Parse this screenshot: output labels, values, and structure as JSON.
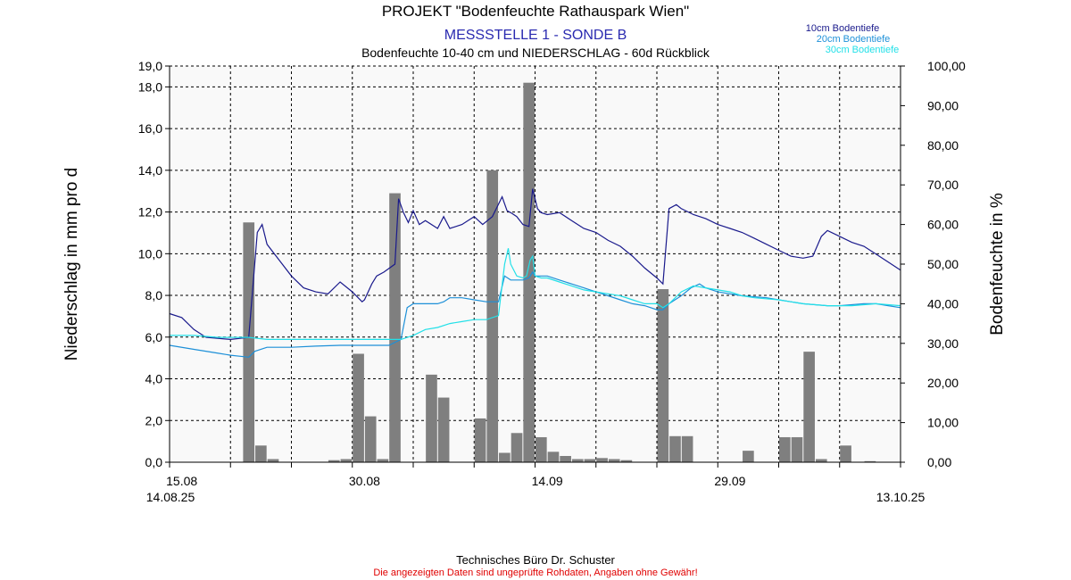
{
  "header": {
    "title": "PROJEKT \"Bodenfeuchte Rathauspark Wien\"",
    "subtitle": "MESSSTELLE 1 - SONDE B",
    "description": "Bodenfeuchte 10-40 cm und NIEDERSCHLAG - 60d Rückblick"
  },
  "footer": {
    "company": "Technisches Büro Dr. Schuster",
    "disclaimer": "Die angezeigten Daten sind ungeprüfte Rohdaten, Angaben ohne Gewähr!"
  },
  "colors": {
    "bars": "#7f7f7f",
    "series_10cm": "#1a1a8c",
    "series_20cm": "#1e90d8",
    "series_30cm": "#22e0e8",
    "title_blue": "#2a2ab0",
    "disclaimer_red": "#e00000"
  },
  "chart_data": {
    "type": "bar+line",
    "ylabel_left": "Niederschlag in mm pro d",
    "ylabel_right": "Bodenfeuchte in %",
    "ylim_left": [
      0,
      19
    ],
    "ylim_right": [
      0,
      100
    ],
    "yticks_left": [
      "0,0",
      "2,0",
      "4,0",
      "6,0",
      "8,0",
      "10,0",
      "12,0",
      "14,0",
      "16,0",
      "18,0",
      "19,0"
    ],
    "yticks_right": [
      "0,00",
      "10,00",
      "20,00",
      "30,00",
      "40,00",
      "50,00",
      "60,00",
      "70,00",
      "80,00",
      "90,00",
      "100,00"
    ],
    "x_range_days": [
      0,
      60
    ],
    "xticks": [
      {
        "day": 1,
        "label": "15.08"
      },
      {
        "day": 16,
        "label": "30.08"
      },
      {
        "day": 31,
        "label": "14.09"
      },
      {
        "day": 46,
        "label": "29.09"
      }
    ],
    "x_start_label": "14.08.25",
    "x_end_label": "13.10.25",
    "grid": true,
    "legend_position": "top-right",
    "precipitation": [
      {
        "day": 6.5,
        "value": 11.5
      },
      {
        "day": 7.5,
        "value": 0.8
      },
      {
        "day": 8.5,
        "value": 0.15
      },
      {
        "day": 13.5,
        "value": 0.1
      },
      {
        "day": 14.5,
        "value": 0.15
      },
      {
        "day": 15.5,
        "value": 5.2
      },
      {
        "day": 16.5,
        "value": 2.2
      },
      {
        "day": 17.5,
        "value": 0.15
      },
      {
        "day": 18.5,
        "value": 12.9
      },
      {
        "day": 21.5,
        "value": 4.2
      },
      {
        "day": 22.5,
        "value": 3.1
      },
      {
        "day": 25.5,
        "value": 2.1
      },
      {
        "day": 26.5,
        "value": 14.0
      },
      {
        "day": 27.5,
        "value": 0.45
      },
      {
        "day": 28.5,
        "value": 1.4
      },
      {
        "day": 29.5,
        "value": 18.2
      },
      {
        "day": 30.5,
        "value": 1.2
      },
      {
        "day": 31.5,
        "value": 0.5
      },
      {
        "day": 32.5,
        "value": 0.3
      },
      {
        "day": 33.5,
        "value": 0.15
      },
      {
        "day": 34.5,
        "value": 0.15
      },
      {
        "day": 35.5,
        "value": 0.2
      },
      {
        "day": 36.5,
        "value": 0.15
      },
      {
        "day": 37.5,
        "value": 0.1
      },
      {
        "day": 40.5,
        "value": 8.3
      },
      {
        "day": 41.5,
        "value": 1.25
      },
      {
        "day": 42.5,
        "value": 1.25
      },
      {
        "day": 47.5,
        "value": 0.55
      },
      {
        "day": 50.5,
        "value": 1.2
      },
      {
        "day": 51.5,
        "value": 1.2
      },
      {
        "day": 52.5,
        "value": 5.3
      },
      {
        "day": 53.5,
        "value": 0.15
      },
      {
        "day": 55.5,
        "value": 0.8
      },
      {
        "day": 57.5,
        "value": 0.05
      }
    ],
    "series": [
      {
        "name": "10cm Bodentiefe",
        "color": "#1a1a8c",
        "points": [
          [
            0,
            37.5
          ],
          [
            1,
            36.5
          ],
          [
            2,
            33.5
          ],
          [
            3,
            31.5
          ],
          [
            5,
            31
          ],
          [
            6.5,
            31.5
          ],
          [
            7.2,
            58
          ],
          [
            7.6,
            60
          ],
          [
            8,
            55
          ],
          [
            9,
            51
          ],
          [
            10,
            47
          ],
          [
            11,
            44
          ],
          [
            12,
            43
          ],
          [
            13,
            42.5
          ],
          [
            14,
            45.5
          ],
          [
            15,
            43
          ],
          [
            15.8,
            40.5
          ],
          [
            16,
            41
          ],
          [
            16.6,
            45
          ],
          [
            17,
            47
          ],
          [
            17.6,
            48
          ],
          [
            18.5,
            50
          ],
          [
            18.8,
            66.5
          ],
          [
            19.2,
            63
          ],
          [
            19.6,
            60.5
          ],
          [
            20,
            63.5
          ],
          [
            20.5,
            60
          ],
          [
            21,
            61
          ],
          [
            22,
            59
          ],
          [
            22.5,
            62
          ],
          [
            23,
            59
          ],
          [
            24,
            60
          ],
          [
            25,
            62
          ],
          [
            25.7,
            60
          ],
          [
            26.5,
            62
          ],
          [
            27.3,
            67
          ],
          [
            27.7,
            63.5
          ],
          [
            28,
            63
          ],
          [
            28.5,
            62
          ],
          [
            29,
            60
          ],
          [
            29.5,
            59.5
          ],
          [
            29.8,
            69
          ],
          [
            30.2,
            64
          ],
          [
            30.5,
            63
          ],
          [
            31,
            62.5
          ],
          [
            32,
            63
          ],
          [
            33,
            61
          ],
          [
            34,
            59
          ],
          [
            35,
            58
          ],
          [
            36,
            56
          ],
          [
            37,
            54.5
          ],
          [
            38,
            52
          ],
          [
            39,
            49
          ],
          [
            40,
            46.5
          ],
          [
            40.5,
            45
          ],
          [
            41,
            64
          ],
          [
            41.6,
            65
          ],
          [
            42,
            64
          ],
          [
            43,
            62.5
          ],
          [
            44,
            61.5
          ],
          [
            45,
            60
          ],
          [
            46,
            59
          ],
          [
            47,
            58
          ],
          [
            48,
            56.5
          ],
          [
            49,
            55
          ],
          [
            50,
            53.5
          ],
          [
            51,
            52
          ],
          [
            52,
            51.5
          ],
          [
            52.8,
            52
          ],
          [
            53.5,
            57
          ],
          [
            54,
            58.5
          ],
          [
            55,
            57
          ],
          [
            56,
            55.5
          ],
          [
            57,
            54.5
          ],
          [
            58,
            52.5
          ],
          [
            59,
            50.5
          ],
          [
            60,
            48.5
          ]
        ]
      },
      {
        "name": "20cm Bodentiefe",
        "color": "#1e90d8",
        "points": [
          [
            0,
            29.5
          ],
          [
            2,
            28.5
          ],
          [
            4,
            27.5
          ],
          [
            5,
            27
          ],
          [
            6.5,
            26.5
          ],
          [
            7,
            28
          ],
          [
            8,
            29
          ],
          [
            10,
            29
          ],
          [
            12,
            29.3
          ],
          [
            14,
            29.5
          ],
          [
            16,
            29.5
          ],
          [
            18,
            29.5
          ],
          [
            19,
            31
          ],
          [
            19.5,
            39
          ],
          [
            20,
            40
          ],
          [
            22,
            40
          ],
          [
            22.5,
            40.5
          ],
          [
            23,
            41.5
          ],
          [
            24,
            41.5
          ],
          [
            25,
            41
          ],
          [
            26,
            40.5
          ],
          [
            27,
            40.5
          ],
          [
            27.5,
            47
          ],
          [
            28,
            46
          ],
          [
            29,
            46
          ],
          [
            29.5,
            46.5
          ],
          [
            29.8,
            48
          ],
          [
            30,
            47
          ],
          [
            31,
            47
          ],
          [
            32,
            46
          ],
          [
            33,
            45
          ],
          [
            34,
            44
          ],
          [
            35,
            43
          ],
          [
            36,
            42
          ],
          [
            37,
            41
          ],
          [
            38,
            40
          ],
          [
            39,
            39.5
          ],
          [
            40,
            38.5
          ],
          [
            40.5,
            38.5
          ],
          [
            41,
            40
          ],
          [
            42,
            42
          ],
          [
            42.8,
            44
          ],
          [
            43.5,
            45
          ],
          [
            44,
            44
          ],
          [
            45,
            43
          ],
          [
            47,
            42
          ],
          [
            49,
            41.5
          ],
          [
            50,
            41
          ],
          [
            52,
            40
          ],
          [
            54,
            39.5
          ],
          [
            55,
            39.5
          ],
          [
            57,
            40
          ],
          [
            58,
            40
          ],
          [
            59,
            39.5
          ],
          [
            60,
            39
          ]
        ]
      },
      {
        "name": "30cm Bodentiefe",
        "color": "#22e0e8",
        "points": [
          [
            0,
            32
          ],
          [
            2,
            32
          ],
          [
            4,
            31.5
          ],
          [
            5,
            31.5
          ],
          [
            6.5,
            31.5
          ],
          [
            8,
            31
          ],
          [
            10,
            31
          ],
          [
            12,
            31
          ],
          [
            14,
            31
          ],
          [
            16,
            31
          ],
          [
            18,
            31
          ],
          [
            19,
            31
          ],
          [
            20,
            32
          ],
          [
            21,
            33.5
          ],
          [
            22,
            34
          ],
          [
            23,
            35
          ],
          [
            24,
            35.5
          ],
          [
            25,
            36
          ],
          [
            26,
            36
          ],
          [
            27,
            37
          ],
          [
            27.5,
            50
          ],
          [
            27.8,
            54
          ],
          [
            28,
            50
          ],
          [
            28.5,
            47
          ],
          [
            29,
            46.5
          ],
          [
            29.3,
            47
          ],
          [
            29.6,
            51
          ],
          [
            29.8,
            52
          ],
          [
            30,
            47
          ],
          [
            30.5,
            46.5
          ],
          [
            31,
            46.5
          ],
          [
            32,
            45.5
          ],
          [
            33,
            44.5
          ],
          [
            34,
            43.5
          ],
          [
            35,
            43
          ],
          [
            36,
            42.5
          ],
          [
            37,
            42
          ],
          [
            38,
            41
          ],
          [
            39,
            40
          ],
          [
            40,
            40
          ],
          [
            40.5,
            39
          ],
          [
            41,
            40
          ],
          [
            42,
            43
          ],
          [
            43,
            44.5
          ],
          [
            44,
            44
          ],
          [
            45,
            43.5
          ],
          [
            46,
            43
          ],
          [
            47,
            42
          ],
          [
            48,
            41.5
          ],
          [
            50,
            41
          ],
          [
            52,
            40
          ],
          [
            54,
            39.5
          ],
          [
            56,
            39.5
          ],
          [
            58,
            40
          ],
          [
            60,
            39.5
          ]
        ]
      }
    ]
  }
}
